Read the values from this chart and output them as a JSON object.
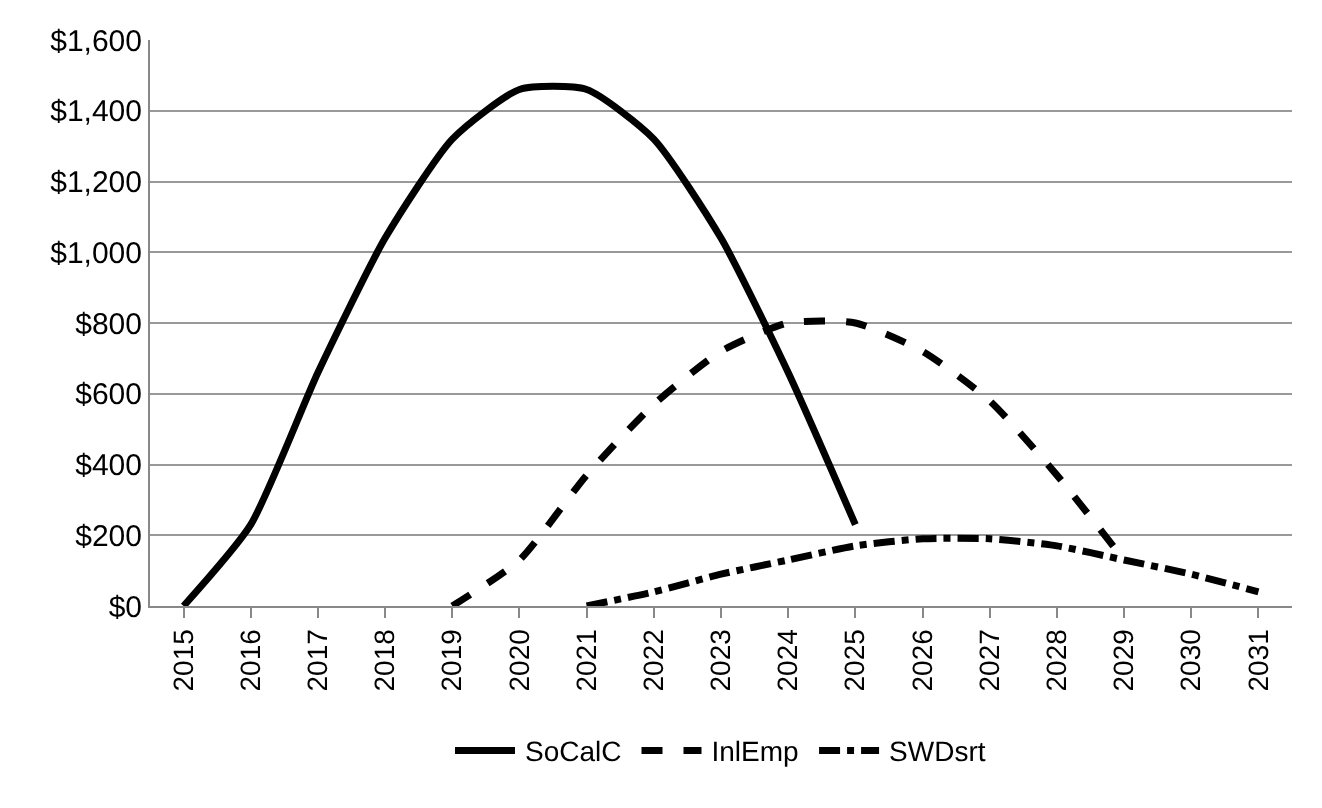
{
  "chart_data": {
    "type": "line",
    "categories": [
      "2015",
      "2016",
      "2017",
      "2018",
      "2019",
      "2020",
      "2021",
      "2022",
      "2023",
      "2024",
      "2025",
      "2026",
      "2027",
      "2028",
      "2029",
      "2030",
      "2031"
    ],
    "series": [
      {
        "name": "SoCalC",
        "color": "#000000",
        "line_style": "solid",
        "values": [
          0,
          230,
          660,
          1040,
          1320,
          1460,
          1460,
          1320,
          1040,
          660,
          230,
          null,
          null,
          null,
          null,
          null,
          null
        ]
      },
      {
        "name": "InlEmp",
        "color": "#000000",
        "line_style": "dashed",
        "values": [
          null,
          null,
          null,
          null,
          0,
          130,
          370,
          570,
          720,
          800,
          800,
          720,
          580,
          370,
          130,
          null,
          null
        ]
      },
      {
        "name": "SWDsrt",
        "color": "#000000",
        "line_style": "dashdot",
        "values": [
          null,
          null,
          null,
          null,
          null,
          null,
          0,
          40,
          90,
          130,
          170,
          190,
          190,
          170,
          130,
          90,
          40
        ]
      }
    ],
    "ylim": [
      0,
      1600
    ],
    "yticks": [
      {
        "value": 0,
        "label": "$0"
      },
      {
        "value": 200,
        "label": "$200"
      },
      {
        "value": 400,
        "label": "$400"
      },
      {
        "value": 600,
        "label": "$600"
      },
      {
        "value": 800,
        "label": "$800"
      },
      {
        "value": 1000,
        "label": "$1,000"
      },
      {
        "value": 1200,
        "label": "$1,200"
      },
      {
        "value": 1400,
        "label": "$1,400"
      },
      {
        "value": 1600,
        "label": "$1,600"
      }
    ],
    "grid": "y",
    "legend": "bottom",
    "marker": "none"
  }
}
